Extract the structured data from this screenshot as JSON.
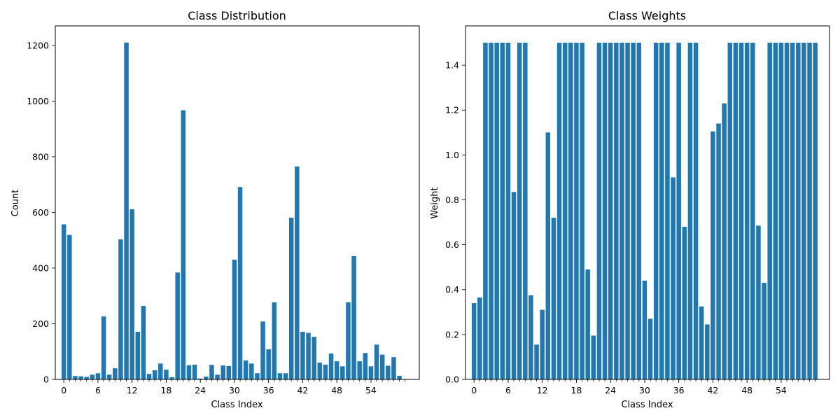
{
  "chart_data": [
    {
      "type": "bar",
      "title": "Class Distribution",
      "xlabel": "Class Index",
      "ylabel": "Count",
      "ylim": [
        0,
        1270
      ],
      "xlim": [
        -1.5,
        62.5
      ],
      "color": "#1f77b4",
      "xticks": [
        0,
        6,
        12,
        18,
        24,
        30,
        36,
        42,
        48,
        54
      ],
      "yticks": [
        0,
        200,
        400,
        600,
        800,
        1000,
        1200
      ],
      "x": [
        0,
        1,
        2,
        3,
        4,
        5,
        6,
        7,
        8,
        9,
        10,
        11,
        12,
        13,
        14,
        15,
        16,
        17,
        18,
        19,
        20,
        21,
        22,
        23,
        24,
        25,
        26,
        27,
        28,
        29,
        30,
        31,
        32,
        33,
        34,
        35,
        36,
        37,
        38,
        39,
        40,
        41,
        42,
        43,
        44,
        45,
        46,
        47,
        48,
        49,
        50,
        51,
        52,
        53,
        54,
        55,
        56,
        57,
        58,
        59,
        60
      ],
      "values": [
        557,
        519,
        12,
        11,
        9,
        17,
        22,
        226,
        17,
        40,
        503,
        1210,
        611,
        171,
        264,
        20,
        33,
        57,
        35,
        8,
        384,
        967,
        51,
        53,
        3,
        10,
        52,
        17,
        50,
        48,
        430,
        691,
        68,
        57,
        22,
        208,
        108,
        277,
        22,
        22,
        581,
        765,
        171,
        167,
        153,
        60,
        53,
        93,
        65,
        47,
        277,
        443,
        65,
        95,
        47,
        125,
        89,
        49,
        80,
        13,
        0
      ]
    },
    {
      "type": "bar",
      "title": "Class Weights",
      "xlabel": "Class Index",
      "ylabel": "Weight",
      "ylim": [
        0,
        1.575
      ],
      "xlim": [
        -1.5,
        62.5
      ],
      "color": "#1f77b4",
      "xticks": [
        0,
        6,
        12,
        18,
        24,
        30,
        36,
        42,
        48,
        54
      ],
      "yticks": [
        "0.0",
        "0.2",
        "0.4",
        "0.6",
        "0.8",
        "1.0",
        "1.2",
        "1.4"
      ],
      "x": [
        0,
        1,
        2,
        3,
        4,
        5,
        6,
        7,
        8,
        9,
        10,
        11,
        12,
        13,
        14,
        15,
        16,
        17,
        18,
        19,
        20,
        21,
        22,
        23,
        24,
        25,
        26,
        27,
        28,
        29,
        30,
        31,
        32,
        33,
        34,
        35,
        36,
        37,
        38,
        39,
        40,
        41,
        42,
        43,
        44,
        45,
        46,
        47,
        48,
        49,
        50,
        51,
        52,
        53,
        54,
        55,
        56,
        57,
        58,
        59,
        60
      ],
      "values": [
        0.34,
        0.365,
        1.5,
        1.5,
        1.5,
        1.5,
        1.5,
        0.835,
        1.5,
        1.5,
        0.375,
        0.155,
        0.31,
        1.1,
        0.72,
        1.5,
        1.5,
        1.5,
        1.5,
        1.5,
        0.49,
        0.195,
        1.5,
        1.5,
        1.5,
        1.5,
        1.5,
        1.5,
        1.5,
        1.5,
        0.44,
        0.27,
        1.5,
        1.5,
        1.5,
        0.9,
        1.5,
        0.68,
        1.5,
        1.5,
        0.325,
        0.245,
        1.105,
        1.14,
        1.23,
        1.5,
        1.5,
        1.5,
        1.5,
        1.5,
        0.685,
        0.43,
        1.5,
        1.5,
        1.5,
        1.5,
        1.5,
        1.5,
        1.5,
        1.5,
        1.5
      ]
    }
  ]
}
